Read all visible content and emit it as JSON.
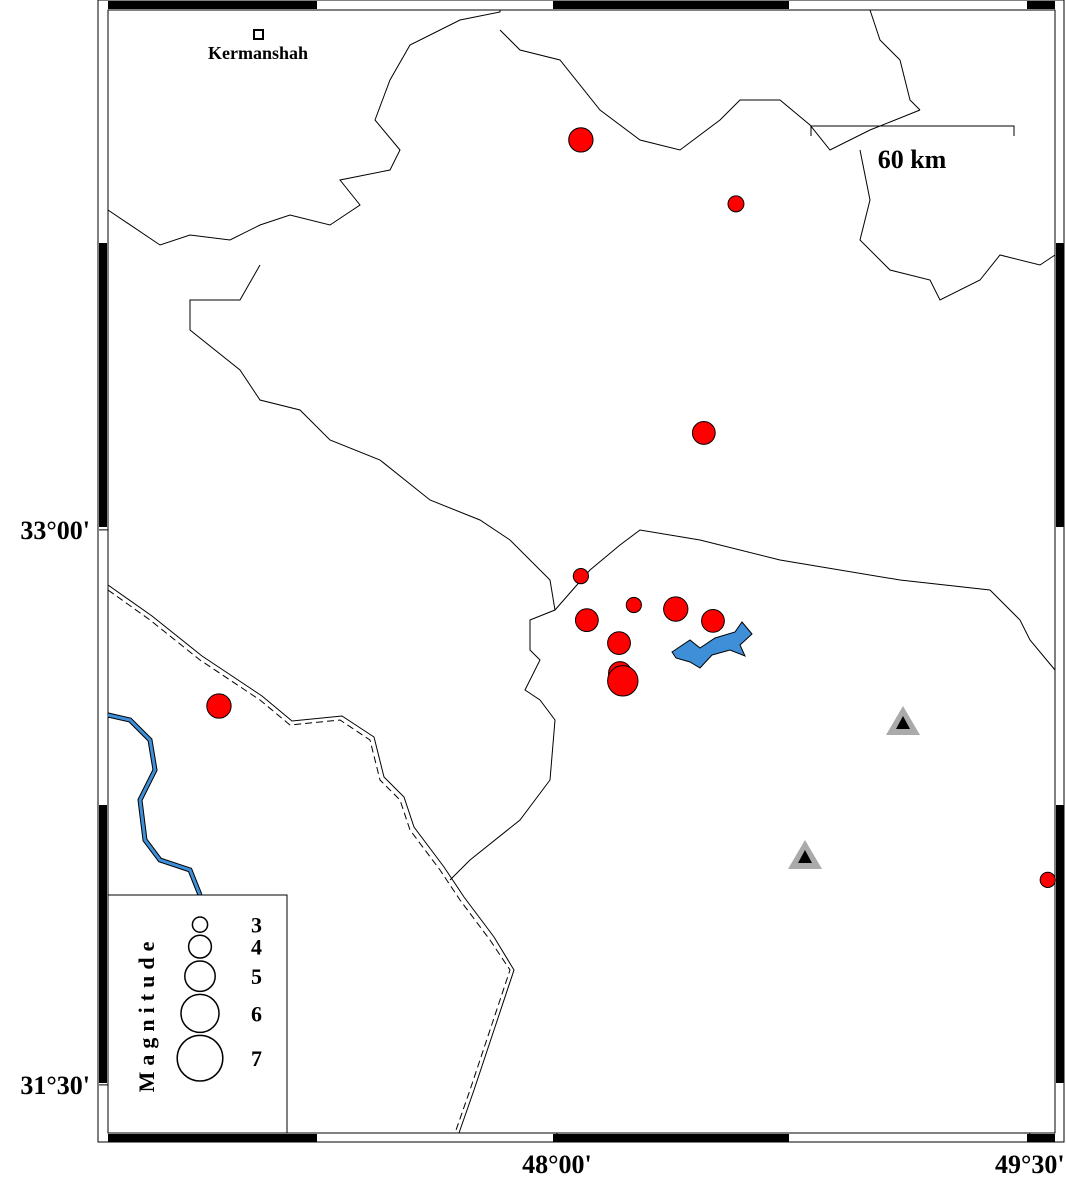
{
  "map": {
    "lonlim": [
      46.576,
      49.58
    ],
    "latlim": [
      31.37,
      34.405
    ],
    "lonticks": [
      {
        "value": 48,
        "label": "48°00'"
      },
      {
        "value": 49.5,
        "label": "49°30'"
      }
    ],
    "latticks": [
      {
        "value": 33,
        "label": "33°00'"
      },
      {
        "value": 31.5,
        "label": "31°30'"
      }
    ],
    "city": {
      "label": "Kermanshah"
    },
    "scale_label": "60 km",
    "events": {
      "lon": [
        48.076,
        48.568,
        48.466,
        48.076,
        48.095,
        48.244,
        48.377,
        48.495,
        48.197,
        48.2,
        48.209,
        46.928,
        49.557
      ],
      "lat": [
        34.054,
        33.881,
        33.262,
        32.875,
        32.756,
        32.797,
        32.786,
        32.754,
        32.694,
        32.613,
        32.592,
        32.524,
        32.054
      ],
      "magnitude": [
        4.2,
        3.1,
        4,
        3,
        4,
        3,
        4.2,
        4,
        4,
        4,
        5,
        4.2,
        3
      ]
    },
    "legend": {
      "title": "Magnitude",
      "magnitudes": [
        3,
        4,
        5,
        6,
        7
      ]
    }
  }
}
